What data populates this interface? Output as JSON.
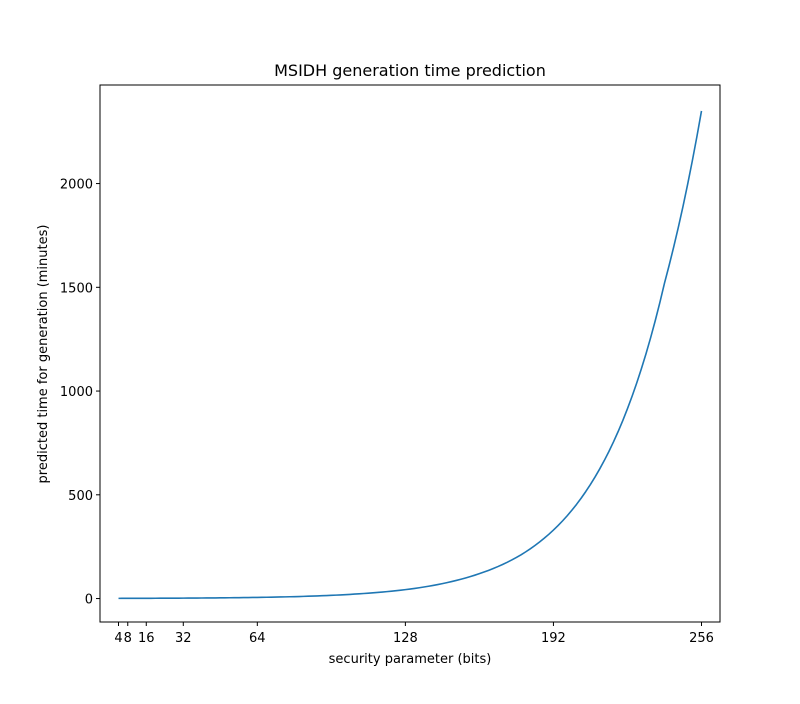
{
  "chart_data": {
    "type": "line",
    "title": "MSIDH generation time prediction",
    "xlabel": "security parameter (bits)",
    "ylabel": "predicted time for generation (minutes)",
    "xlim": [
      -4,
      264
    ],
    "ylim": [
      -113,
      2475
    ],
    "xticks": [
      4,
      8,
      16,
      32,
      64,
      128,
      192,
      256
    ],
    "xtick_labels": [
      "4",
      "8",
      "16",
      "32",
      "64",
      "128",
      "192",
      "256"
    ],
    "yticks": [
      0,
      500,
      1000,
      1500,
      2000
    ],
    "ytick_labels": [
      "0",
      "500",
      "1000",
      "1500",
      "2000"
    ],
    "grid": false,
    "legend": null,
    "series": [
      {
        "color": "#1f77b4",
        "x": [
          4,
          16,
          32,
          48,
          64,
          80,
          96,
          112,
          128,
          144,
          160,
          176,
          192,
          208,
          224,
          240,
          256
        ],
        "y": [
          0.9,
          1.3,
          2.1,
          3.4,
          5.5,
          9.2,
          15.5,
          26,
          43,
          72,
          120,
          198,
          330,
          550,
          915,
          1520,
          2350
        ]
      }
    ],
    "colors": {
      "line": "#1f77b4",
      "axes": "#000000",
      "background": "#ffffff"
    }
  }
}
